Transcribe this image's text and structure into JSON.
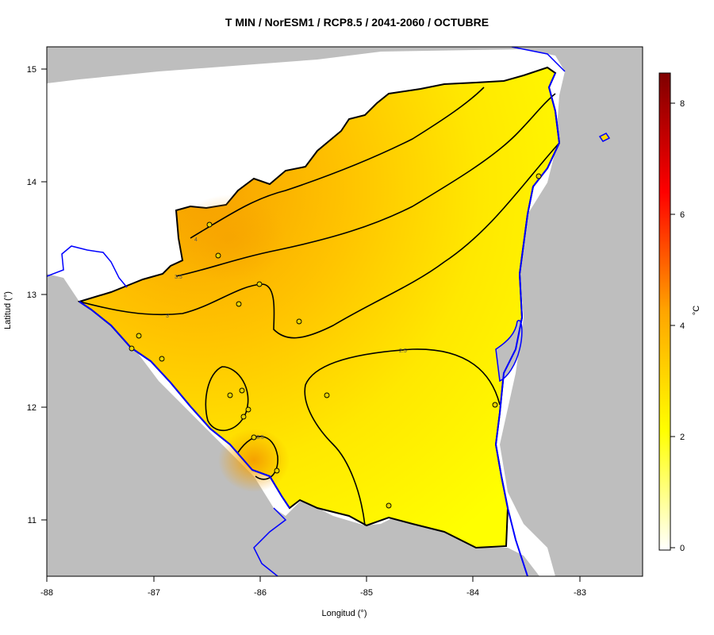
{
  "title": "T MIN / NorESM1 / RCP8.5 / 2041-2060 / OCTUBRE",
  "xlabel": "Longitud (°)",
  "ylabel": "Latitud (°)",
  "xticks": [
    "-88",
    "-87",
    "-86",
    "-85",
    "-84",
    "-83"
  ],
  "yticks": [
    "11",
    "12",
    "13",
    "14",
    "15"
  ],
  "colorbar": {
    "unit": "°C",
    "ticks": [
      "0",
      "2",
      "4",
      "6",
      "8"
    ],
    "colors": [
      "#ffffff",
      "#ffff00",
      "#ffa500",
      "#ff0000",
      "#7f0000"
    ]
  },
  "contour_labels": [
    "4",
    "3.5",
    "3",
    "2.5",
    "3.5"
  ],
  "colors": {
    "land_outside": "#bebebe",
    "coast": "#0000ff",
    "border": "#000000",
    "station": "#e0d000"
  }
}
